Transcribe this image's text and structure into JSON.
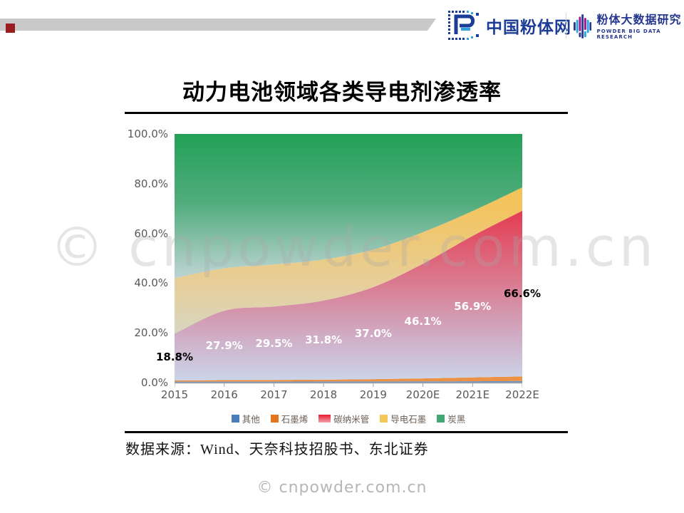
{
  "header": {
    "logo1": {
      "text": "中国粉体网"
    },
    "logo2": {
      "title": "粉体大数据研究",
      "subtitle": "POWDER BIG DATA RESEARCH"
    }
  },
  "slide": {
    "title": "动力电池领域各类导电剂渗透率",
    "source": "数据来源：Wind、天奈科技招股书、东北证券",
    "watermark": "© cnpowder.com.cn",
    "footer": "© cnpowder.com.cn"
  },
  "chart_data": {
    "type": "area",
    "stacked": true,
    "title": "动力电池领域各类导电剂渗透率",
    "categories": [
      "2015",
      "2016",
      "2017",
      "2018",
      "2019",
      "2020E",
      "2021E",
      "2022E"
    ],
    "ylabel": "",
    "xlabel": "",
    "y_range": [
      0,
      100
    ],
    "y_tick_labels": [
      "100.0%",
      "80.0%",
      "60.0%",
      "40.0%",
      "20.0%",
      "0.0%"
    ],
    "grid": false,
    "legend_position": "bottom",
    "axis_color": "#a6a6a6",
    "series": [
      {
        "name": "其他",
        "values": [
          0.4,
          0.4,
          0.4,
          0.45,
          0.45,
          0.5,
          0.55,
          0.6
        ],
        "gradient": [
          [
            0,
            "#6a92c6"
          ],
          [
            1,
            "#6a92c6"
          ]
        ]
      },
      {
        "name": "石墨烯",
        "values": [
          0.5,
          0.6,
          0.7,
          0.75,
          0.95,
          1.2,
          1.55,
          1.9
        ],
        "gradient": [
          [
            0,
            "#e1762a"
          ],
          [
            1,
            "#ec9246"
          ]
        ]
      },
      {
        "name": "碳纳米管",
        "values": [
          18.8,
          27.9,
          29.5,
          31.8,
          37.0,
          46.1,
          56.9,
          66.6
        ],
        "labels": [
          "18.8%",
          "27.9%",
          "29.5%",
          "31.8%",
          "37.0%",
          "46.1%",
          "56.9%",
          "66.6%"
        ],
        "label_colors": [
          "#000000",
          "#ffffff",
          "#ffffff",
          "#ffffff",
          "#ffffff",
          "#ffffff",
          "#ffffff",
          "#000000"
        ],
        "gradient": [
          [
            0,
            "#e61128"
          ],
          [
            0.3,
            "#e43a50"
          ],
          [
            0.6,
            "#da7b90"
          ],
          [
            0.82,
            "#cfaec6"
          ],
          [
            1,
            "#cbd7ea"
          ]
        ]
      },
      {
        "name": "导电石墨",
        "values": [
          22.3,
          17.1,
          16.9,
          16.5,
          15.1,
          12.7,
          10.0,
          9.4
        ],
        "gradient": [
          [
            0,
            "#f7be3f"
          ],
          [
            0.3,
            "#f3c45f"
          ],
          [
            0.62,
            "#e6cf9d"
          ],
          [
            0.85,
            "#d3d8c9"
          ],
          [
            1,
            "#cdd9e0"
          ]
        ]
      },
      {
        "name": "炭黑",
        "values": [
          58.0,
          54.0,
          52.5,
          50.5,
          46.5,
          39.5,
          31.0,
          21.5
        ],
        "gradient": [
          [
            0,
            "#22a157"
          ],
          [
            0.28,
            "#52ac7d"
          ],
          [
            0.55,
            "#b4d1cc"
          ],
          [
            0.8,
            "#c8dce6"
          ],
          [
            1,
            "#cddbe8"
          ]
        ]
      }
    ],
    "legend": [
      {
        "label": "其他",
        "color": "#4a7ebb",
        "w": 11
      },
      {
        "label": "石墨烯",
        "color": "#e2751d",
        "w": 11
      },
      {
        "label": "碳纳米管",
        "color": "#e8192c",
        "w": 17,
        "gradient_marker": true
      },
      {
        "label": "导电石墨",
        "color": "#f2c858",
        "w": 11
      },
      {
        "label": "炭黑",
        "color": "#43a876",
        "w": 11
      }
    ]
  }
}
